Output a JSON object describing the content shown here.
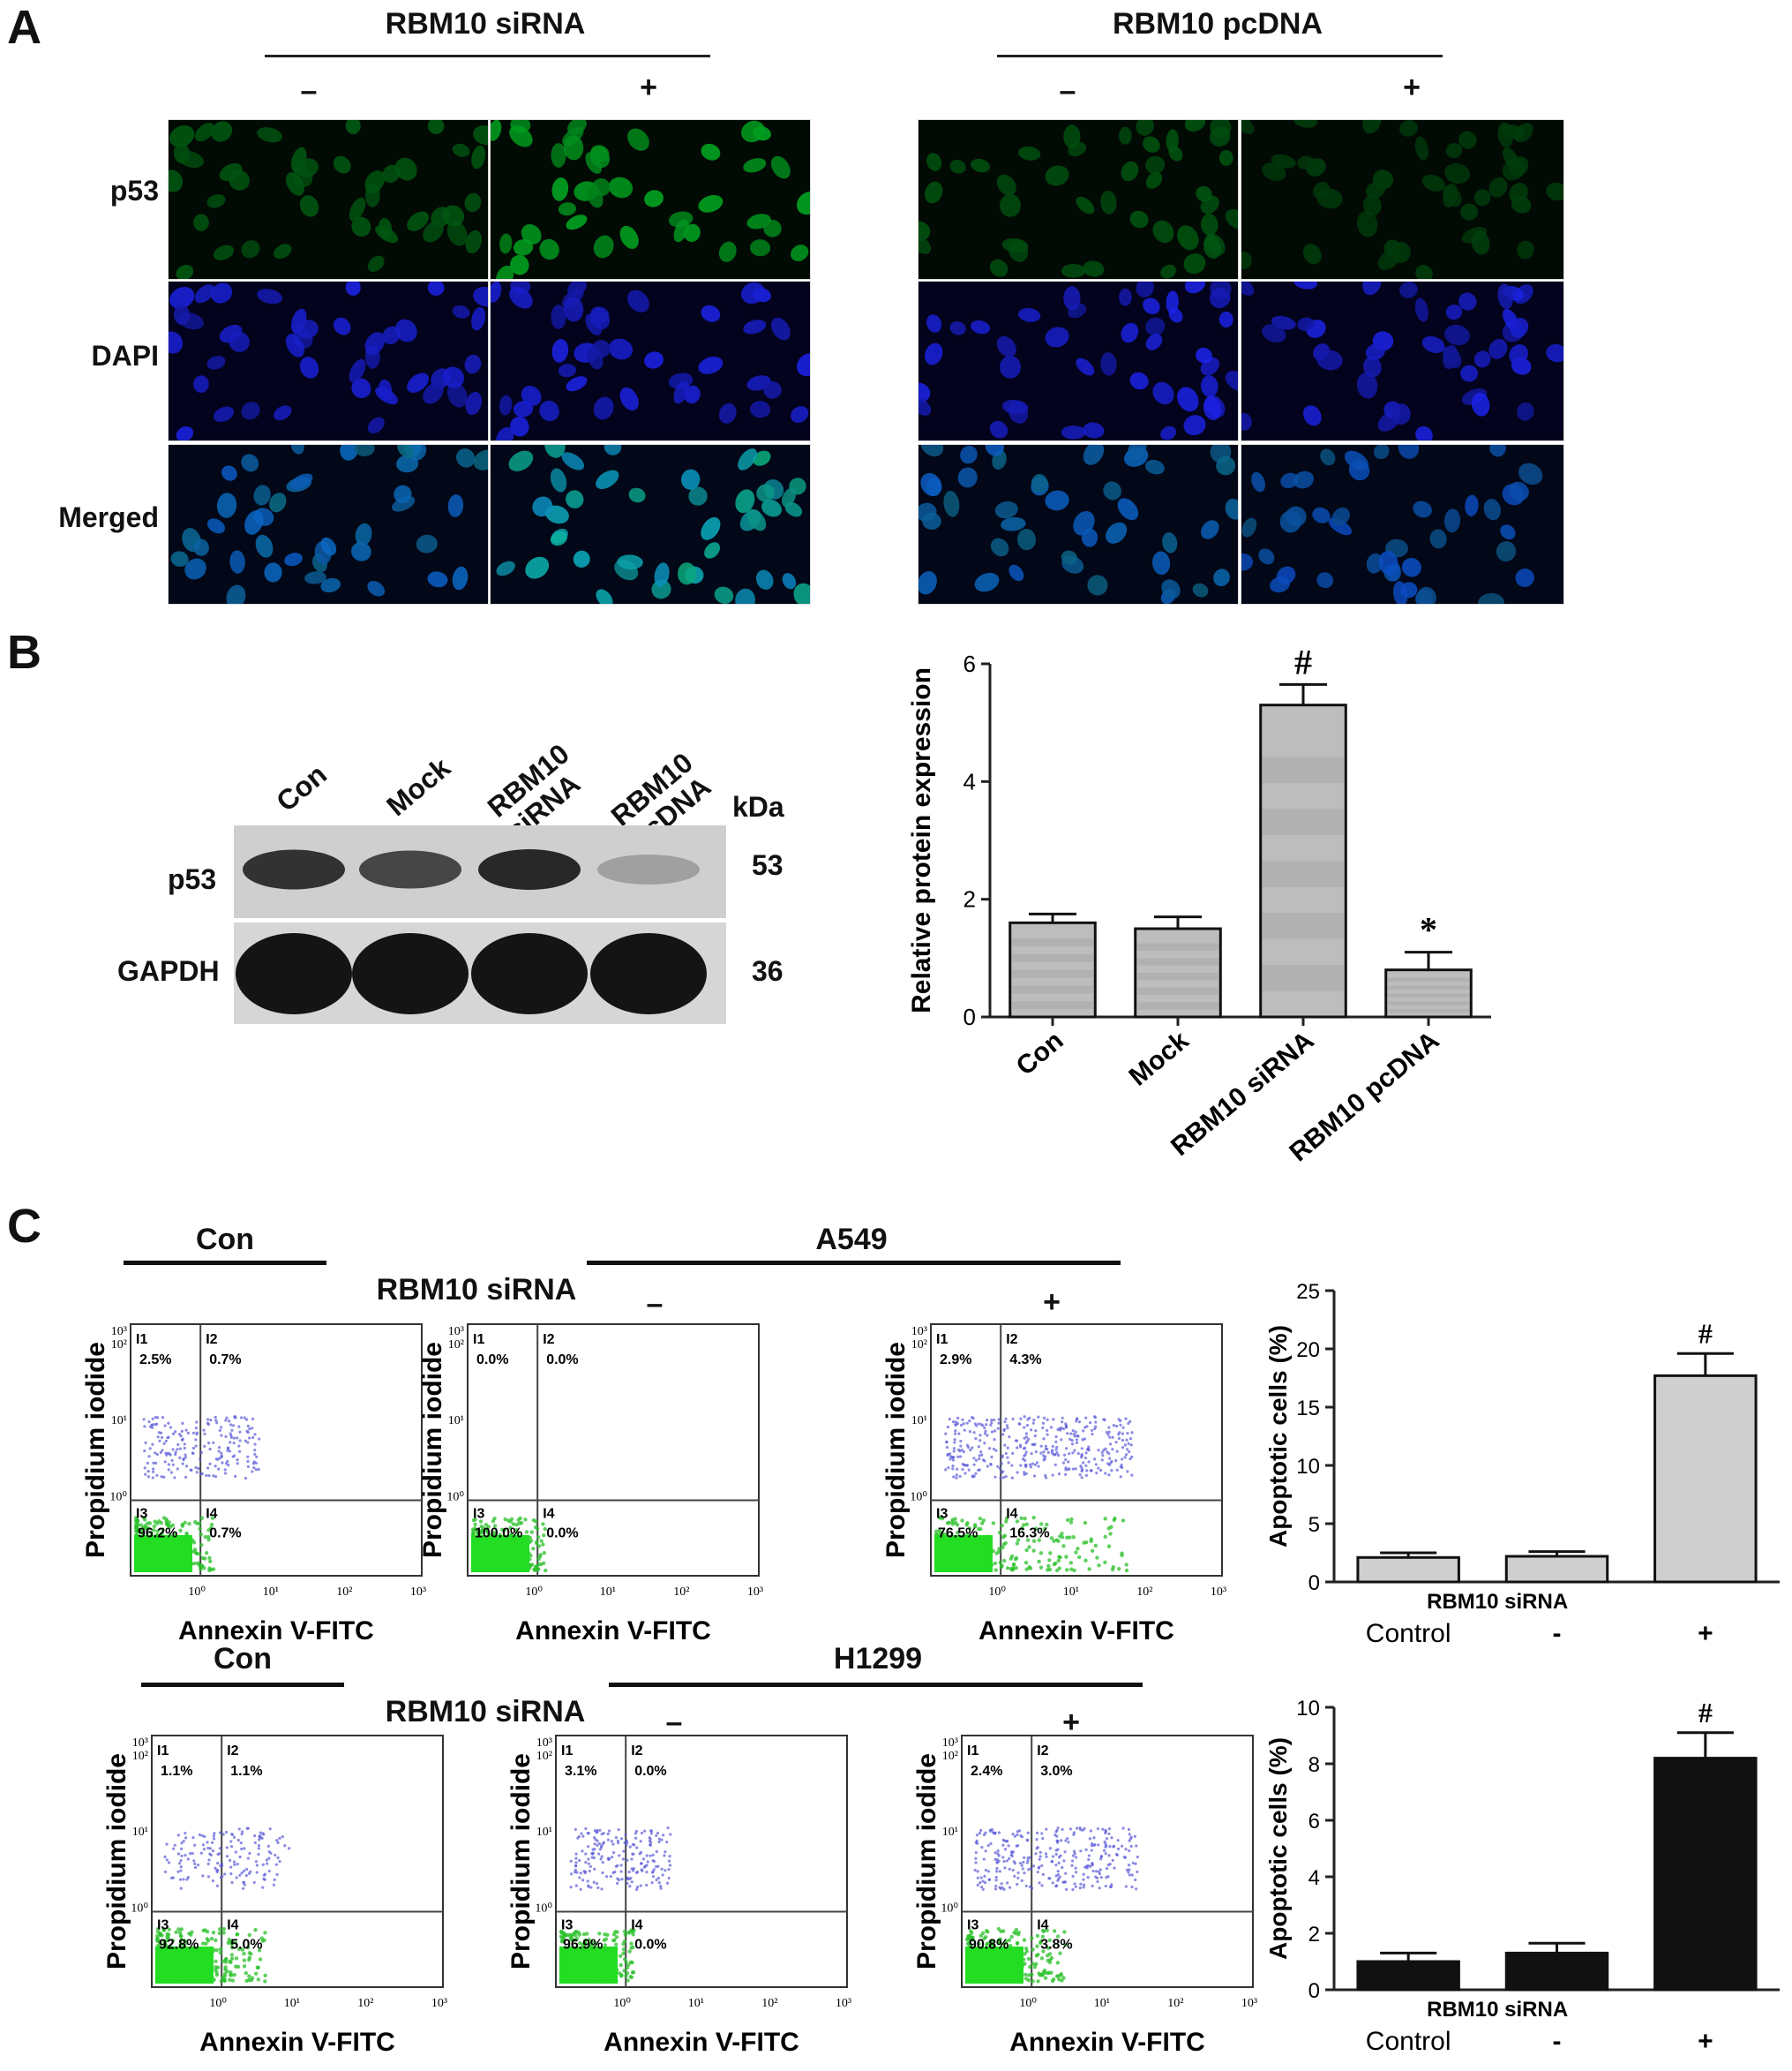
{
  "panelA": {
    "letter": "A",
    "groups": [
      {
        "title": "RBM10 siRNA",
        "signs": [
          "–",
          "+"
        ]
      },
      {
        "title": "RBM10 pcDNA",
        "signs": [
          "–",
          "+"
        ]
      }
    ],
    "rows": [
      "p53",
      "DAPI",
      "Merged"
    ]
  },
  "panelB": {
    "letter": "B",
    "lanes": [
      "Con",
      "Mock",
      "RBM10\nsiRNA",
      "RBM10\npcDNA"
    ],
    "kda_label": "kDa",
    "bands": [
      {
        "name": "p53",
        "kda": "53",
        "intensity": [
          0.85,
          0.75,
          0.9,
          0.3
        ]
      },
      {
        "name": "GAPDH",
        "kda": "36",
        "intensity": [
          1,
          1,
          1,
          1
        ]
      }
    ]
  },
  "panelC": {
    "letter": "C",
    "rows": [
      {
        "con_label": "Con",
        "cell_line": "A549",
        "treatment_label": "RBM10 siRNA",
        "signs": [
          "–",
          "+"
        ],
        "plots": [
          {
            "q1": "2.5%",
            "q2": "0.7%",
            "q3": "96.2%",
            "q4": "0.7%",
            "q1_label": "I1",
            "q2_label": "I2",
            "q3_label": "I3",
            "q4_label": "I4"
          },
          {
            "q1": "0.0%",
            "q2": "0.0%",
            "q3": "100.0%",
            "q4": "0.0%",
            "q1_label": "I1",
            "q2_label": "I2",
            "q3_label": "I3",
            "q4_label": "I4"
          },
          {
            "q1": "2.9%",
            "q2": "4.3%",
            "q3": "76.5%",
            "q4": "16.3%",
            "q1_label": "I1",
            "q2_label": "I2",
            "q3_label": "I3",
            "q4_label": "I4"
          }
        ]
      },
      {
        "con_label": "Con",
        "cell_line": "H1299",
        "treatment_label": "RBM10 siRNA",
        "signs": [
          "–",
          "+"
        ],
        "plots": [
          {
            "q1": "1.1%",
            "q2": "1.1%",
            "q3": "92.8%",
            "q4": "5.0%",
            "q1_label": "I1",
            "q2_label": "I2",
            "q3_label": "I3",
            "q4_label": "I4"
          },
          {
            "q1": "3.1%",
            "q2": "0.0%",
            "q3": "96.9%",
            "q4": "0.0%",
            "q1_label": "I1",
            "q2_label": "I2",
            "q3_label": "I3",
            "q4_label": "I4"
          },
          {
            "q1": "2.4%",
            "q2": "3.0%",
            "q3": "90.8%",
            "q4": "3.8%",
            "q1_label": "I1",
            "q2_label": "I2",
            "q3_label": "I3",
            "q4_label": "I4"
          }
        ]
      }
    ],
    "flow_xlabel": "Annexin V-FITC",
    "flow_ylabel": "Propidium iodide",
    "flow_ticks": [
      "10⁰",
      "10¹",
      "10²",
      "10³"
    ]
  },
  "chart_data": [
    {
      "type": "bar",
      "categories": [
        "Con",
        "Mock",
        "RBM10 siRNA",
        "RBM10 pcDNA"
      ],
      "values": [
        1.6,
        1.5,
        5.3,
        0.8
      ],
      "errors": [
        0.15,
        0.2,
        0.35,
        0.3
      ],
      "annotations": [
        "",
        "",
        "#",
        "*"
      ],
      "ylabel": "Relative protein expression",
      "ylim": [
        0,
        6
      ],
      "yticks": [
        0,
        2,
        4,
        6
      ],
      "bar_color": "#bdbdbd"
    },
    {
      "type": "bar",
      "categories": [
        "Control",
        "-",
        "+"
      ],
      "x_row_label": "RBM10 siRNA",
      "values": [
        2.1,
        2.2,
        17.7
      ],
      "errors": [
        0.4,
        0.4,
        1.9
      ],
      "annotations": [
        "",
        "",
        "#"
      ],
      "ylabel": "Apoptotic cells (%)",
      "ylim": [
        0,
        25
      ],
      "yticks": [
        0,
        5,
        10,
        15,
        20,
        25
      ],
      "bar_color": "#cfcfcf"
    },
    {
      "type": "bar",
      "categories": [
        "Control",
        "-",
        "+"
      ],
      "x_row_label": "RBM10 siRNA",
      "values": [
        1.0,
        1.3,
        8.2
      ],
      "errors": [
        0.3,
        0.35,
        0.9
      ],
      "annotations": [
        "",
        "",
        "#"
      ],
      "ylabel": "Apoptotic cells (%)",
      "ylim": [
        0,
        10
      ],
      "yticks": [
        0,
        2,
        4,
        6,
        8,
        10
      ],
      "bar_color": "#111111"
    }
  ]
}
